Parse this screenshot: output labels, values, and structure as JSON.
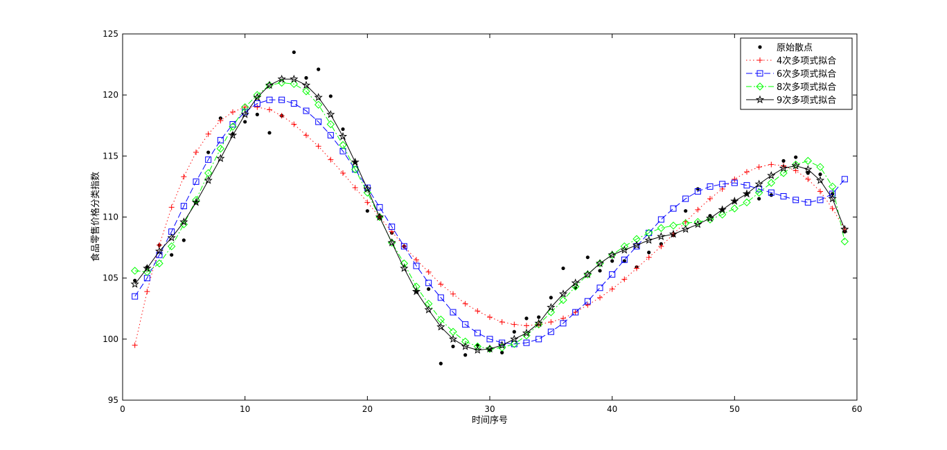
{
  "chart_data": {
    "type": "scatter",
    "xlabel": "时间序号",
    "ylabel": "食品零售价格分类指数",
    "xlim": [
      0,
      60
    ],
    "ylim": [
      95,
      125
    ],
    "xticks": [
      0,
      10,
      20,
      30,
      40,
      50,
      60
    ],
    "yticks": [
      95,
      100,
      105,
      110,
      115,
      120,
      125
    ],
    "grid": false,
    "legend_position": "top-right",
    "x": [
      1,
      2,
      3,
      4,
      5,
      6,
      7,
      8,
      9,
      10,
      11,
      12,
      13,
      14,
      15,
      16,
      17,
      18,
      19,
      20,
      21,
      22,
      23,
      24,
      25,
      26,
      27,
      28,
      29,
      30,
      31,
      32,
      33,
      34,
      35,
      36,
      37,
      38,
      39,
      40,
      41,
      42,
      43,
      44,
      45,
      46,
      47,
      48,
      49,
      50,
      51,
      52,
      53,
      54,
      55,
      56,
      57,
      58,
      59
    ],
    "series": [
      {
        "name": "原始散点",
        "style": "markers",
        "marker": "dot",
        "color": "#000000",
        "values": [
          104.8,
          105.9,
          107.7,
          106.9,
          108.1,
          111.2,
          115.3,
          118.1,
          116.8,
          117.8,
          118.4,
          116.9,
          118.3,
          123.5,
          121.4,
          122.1,
          119.9,
          117.2,
          114.5,
          110.5,
          110.0,
          108.7,
          107.6,
          103.9,
          104.1,
          98.0,
          99.4,
          98.7,
          99.5,
          99.1,
          98.9,
          100.6,
          101.7,
          101.8,
          103.4,
          105.8,
          104.2,
          106.7,
          105.6,
          106.4,
          106.4,
          105.9,
          107.1,
          107.8,
          108.5,
          110.5,
          112.3,
          110.1,
          110.6,
          111.3,
          111.9,
          111.5,
          111.8,
          114.6,
          114.9,
          113.6,
          113.5,
          111.9,
          108.8
        ]
      },
      {
        "name": "4次多项式拟合",
        "style": "dotted",
        "marker": "plus",
        "color": "#ff0000",
        "values": [
          99.5,
          103.9,
          107.7,
          110.8,
          113.3,
          115.3,
          116.8,
          117.9,
          118.6,
          119.0,
          119.0,
          118.8,
          118.3,
          117.6,
          116.7,
          115.8,
          114.7,
          113.6,
          112.4,
          111.2,
          110.0,
          108.8,
          107.6,
          106.5,
          105.5,
          104.5,
          103.7,
          102.9,
          102.3,
          101.8,
          101.4,
          101.2,
          101.1,
          101.2,
          101.4,
          101.7,
          102.2,
          102.8,
          103.4,
          104.1,
          104.9,
          105.8,
          106.7,
          107.6,
          108.6,
          109.6,
          110.6,
          111.5,
          112.3,
          113.1,
          113.7,
          114.1,
          114.3,
          114.2,
          113.8,
          113.1,
          112.1,
          110.7,
          109.0
        ]
      },
      {
        "name": "6次多项式拟合",
        "style": "dashed",
        "marker": "square",
        "color": "#0000ff",
        "values": [
          103.5,
          105.0,
          106.9,
          108.8,
          110.9,
          112.9,
          114.7,
          116.3,
          117.6,
          118.6,
          119.3,
          119.6,
          119.6,
          119.3,
          118.7,
          117.8,
          116.7,
          115.4,
          113.9,
          112.4,
          110.8,
          109.2,
          107.6,
          106.0,
          104.6,
          103.4,
          102.2,
          101.2,
          100.5,
          100.0,
          99.7,
          99.6,
          99.7,
          100.0,
          100.6,
          101.3,
          102.2,
          103.1,
          104.2,
          105.3,
          106.5,
          107.6,
          108.7,
          109.8,
          110.7,
          111.5,
          112.1,
          112.5,
          112.7,
          112.8,
          112.6,
          112.3,
          112.0,
          111.7,
          111.4,
          111.2,
          111.4,
          111.9,
          113.1
        ]
      },
      {
        "name": "8次多项式拟合",
        "style": "dashdot",
        "marker": "diamond",
        "color": "#00ff00",
        "values": [
          105.6,
          105.5,
          106.2,
          107.6,
          109.4,
          111.4,
          113.6,
          115.6,
          117.4,
          119.0,
          120.0,
          120.8,
          121.0,
          120.9,
          120.3,
          119.2,
          117.6,
          115.9,
          113.9,
          112.0,
          110.0,
          107.9,
          106.2,
          104.3,
          102.9,
          101.6,
          100.6,
          99.8,
          99.4,
          99.2,
          99.3,
          99.6,
          100.3,
          101.2,
          102.2,
          103.2,
          104.3,
          105.3,
          106.2,
          106.9,
          107.6,
          108.2,
          108.7,
          109.1,
          109.3,
          109.5,
          109.6,
          109.8,
          110.2,
          110.7,
          111.2,
          112.0,
          112.8,
          113.6,
          114.3,
          114.6,
          114.1,
          112.5,
          108.0
        ]
      },
      {
        "name": "9次多项式拟合",
        "style": "solid",
        "marker": "star",
        "color": "#000000",
        "values": [
          104.5,
          105.8,
          107.2,
          108.3,
          109.6,
          111.2,
          113.0,
          114.8,
          116.7,
          118.4,
          119.8,
          120.8,
          121.3,
          121.3,
          120.8,
          119.8,
          118.4,
          116.6,
          114.5,
          112.3,
          110.0,
          107.9,
          105.8,
          103.9,
          102.4,
          101.0,
          100.0,
          99.4,
          99.1,
          99.2,
          99.5,
          100.0,
          100.5,
          101.3,
          102.6,
          103.7,
          104.6,
          105.3,
          106.2,
          106.9,
          107.3,
          107.7,
          108.1,
          108.4,
          108.6,
          109.0,
          109.4,
          109.9,
          110.6,
          111.3,
          111.9,
          112.7,
          113.4,
          114.0,
          114.2,
          113.9,
          113.0,
          111.5,
          109.0
        ]
      }
    ]
  }
}
